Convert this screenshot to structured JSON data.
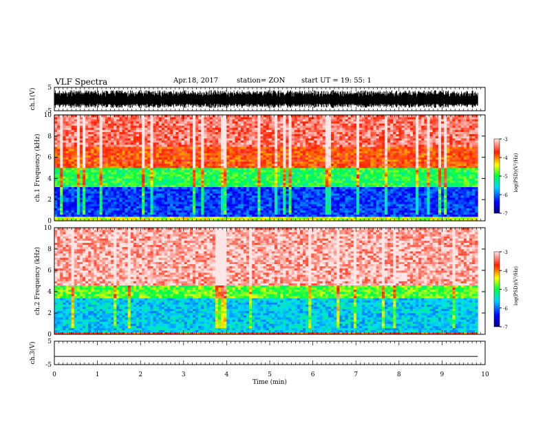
{
  "header": {
    "title": "VLF Spectra",
    "date": "Apr.18, 2017",
    "station": "station= ZON",
    "start": "start UT =  19: 55: 1"
  },
  "chart_data": [
    {
      "type": "line",
      "name": "waveform-ch1",
      "ylabel": "ch.1(V)",
      "ylim": [
        -5,
        5
      ],
      "yticks": [
        "5",
        "-5"
      ],
      "xlim": [
        0,
        10
      ],
      "description_values": {
        "signal_amplitude_range_V": [
          -3.5,
          3.5
        ]
      }
    },
    {
      "type": "heatmap",
      "name": "spectrogram-ch1",
      "ylabel": "ch.1 Frequency (kHz)",
      "ylim": [
        0,
        10
      ],
      "yticks": [
        "0",
        "2",
        "4",
        "6",
        "8",
        "10"
      ],
      "xlim": [
        0,
        10
      ],
      "colorbar": {
        "label": "log(PSD)(V²/Hz)",
        "range": [
          -7,
          -3
        ],
        "ticks": [
          "-3",
          "-4",
          "-5",
          "-6",
          "-7"
        ]
      },
      "bands": [
        {
          "freq_kHz": [
            0,
            0.5
          ],
          "log_psd": -4.5
        },
        {
          "freq_kHz": [
            0.5,
            3.3
          ],
          "log_psd": -6.2
        },
        {
          "freq_kHz": [
            3.3,
            5.0
          ],
          "log_psd": -5.0
        },
        {
          "freq_kHz": [
            5.0,
            7.0
          ],
          "log_psd": -3.8
        },
        {
          "freq_kHz": [
            7.0,
            10.0
          ],
          "log_psd": -3.4
        }
      ]
    },
    {
      "type": "heatmap",
      "name": "spectrogram-ch2",
      "ylabel": "ch.2 Frequency (kHz)",
      "ylim": [
        0,
        10
      ],
      "yticks": [
        "0",
        "2",
        "4",
        "6",
        "8",
        "10"
      ],
      "xlim": [
        0,
        10
      ],
      "colorbar": {
        "label": "log(PSD)(V²/Hz)",
        "range": [
          -7,
          -3
        ],
        "ticks": [
          "-3",
          "-4",
          "-5",
          "-6",
          "-7"
        ]
      },
      "bands": [
        {
          "freq_kHz": [
            0,
            0.3
          ],
          "log_psd": -3.8
        },
        {
          "freq_kHz": [
            0.3,
            3.5
          ],
          "log_psd": -5.6
        },
        {
          "freq_kHz": [
            3.5,
            4.6
          ],
          "log_psd": -4.8
        },
        {
          "freq_kHz": [
            4.6,
            10.0
          ],
          "log_psd": -3.2
        }
      ]
    },
    {
      "type": "line",
      "name": "waveform-ch3",
      "ylabel": "ch.3(V)",
      "ylim": [
        -5,
        5
      ],
      "yticks": [
        "5",
        "-5"
      ],
      "xlim": [
        0,
        10
      ],
      "xlabel": "Time (min)",
      "xticks": [
        "0",
        "1",
        "2",
        "3",
        "4",
        "5",
        "6",
        "7",
        "8",
        "9",
        "10"
      ],
      "description_values": {
        "constant_level_V": -1.5
      }
    }
  ]
}
